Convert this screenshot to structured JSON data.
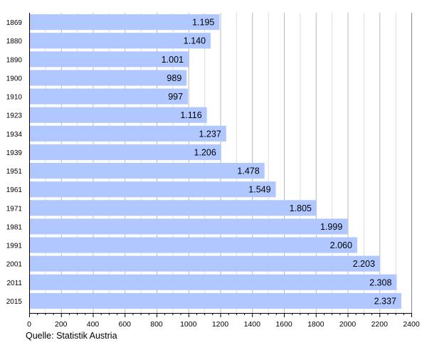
{
  "chart_data": {
    "type": "bar",
    "orientation": "horizontal",
    "categories": [
      "1869",
      "1880",
      "1890",
      "1900",
      "1910",
      "1923",
      "1934",
      "1939",
      "1951",
      "1961",
      "1971",
      "1981",
      "1991",
      "2001",
      "2011",
      "2015"
    ],
    "values": [
      1195,
      1140,
      1001,
      989,
      997,
      1116,
      1237,
      1206,
      1478,
      1549,
      1805,
      1999,
      2060,
      2203,
      2308,
      2337
    ],
    "value_labels": [
      "1.195",
      "1.140",
      "1.001",
      "989",
      "997",
      "1.116",
      "1.237",
      "1.206",
      "1.478",
      "1.549",
      "1.805",
      "1.999",
      "2.060",
      "2.203",
      "2.308",
      "2.337"
    ],
    "xlim": [
      0,
      2400
    ],
    "xticks": [
      "0",
      "200",
      "400",
      "600",
      "800",
      "1000",
      "1200",
      "1400",
      "1600",
      "1800",
      "2000",
      "2200",
      "2400"
    ],
    "grid": true,
    "bar_color": "#b0c8ff",
    "source_note": "Quelle: Statistik Austria"
  }
}
